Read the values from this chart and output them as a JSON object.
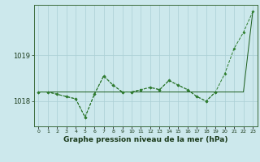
{
  "xlabel": "Graphe pression niveau de la mer (hPa)",
  "hours": [
    0,
    1,
    2,
    3,
    4,
    5,
    6,
    7,
    8,
    9,
    10,
    11,
    12,
    13,
    14,
    15,
    16,
    17,
    18,
    19,
    20,
    21,
    22,
    23
  ],
  "line_wavy": [
    1018.2,
    1018.2,
    1018.15,
    1018.1,
    1018.05,
    1017.65,
    1018.15,
    1018.55,
    1018.35,
    1018.2,
    1018.2,
    1018.25,
    1018.3,
    1018.25,
    1018.45,
    1018.35,
    1018.25,
    1018.1,
    1018.0,
    1018.2,
    1018.6,
    1019.15,
    1019.5,
    1019.95
  ],
  "line_short": [
    1018.2,
    1018.2,
    1018.15,
    1018.1,
    1018.05,
    1017.65,
    1018.15,
    1018.55,
    1018.35,
    1018.2,
    1018.2,
    1018.25,
    1018.3,
    1018.25,
    1018.45,
    1018.35,
    1018.25,
    1018.1,
    1018.0,
    1018.2,
    null,
    null,
    null,
    null
  ],
  "line_straight": [
    1018.2,
    1018.2,
    1018.2,
    1018.2,
    1018.2,
    1018.2,
    1018.2,
    1018.2,
    1018.2,
    1018.2,
    1018.2,
    1018.2,
    1018.2,
    1018.2,
    1018.2,
    1018.2,
    1018.2,
    1018.2,
    1018.2,
    1018.2,
    1018.2,
    1018.2,
    1018.2,
    1019.95
  ],
  "ylim_min": 1017.45,
  "ylim_max": 1020.1,
  "yticks": [
    1018,
    1019
  ],
  "bg_color": "#cce8ec",
  "grid_color": "#aacfd4",
  "line_dark": "#1a5c1a",
  "line_mid": "#2e7d2e"
}
